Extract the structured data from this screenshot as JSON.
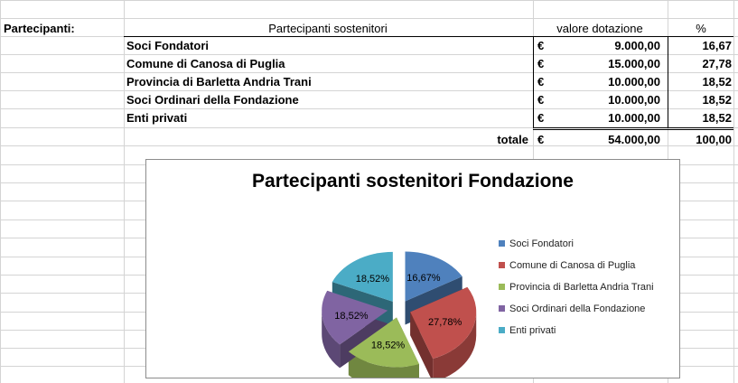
{
  "sheet": {
    "row_label": "Partecipanti:",
    "headers": {
      "name": "Partecipanti sostenitori",
      "value": "valore dotazione",
      "pct": "%"
    },
    "currency": "€",
    "rows": [
      {
        "name": "Soci Fondatori",
        "value": "9.000,00",
        "pct": "16,67"
      },
      {
        "name": "Comune di Canosa di Puglia",
        "value": "15.000,00",
        "pct": "27,78"
      },
      {
        "name": "Provincia di Barletta Andria Trani",
        "value": "10.000,00",
        "pct": "18,52"
      },
      {
        "name": "Soci Ordinari della Fondazione",
        "value": "10.000,00",
        "pct": "18,52"
      },
      {
        "name": "Enti privati",
        "value": "10.000,00",
        "pct": "18,52"
      }
    ],
    "total": {
      "label": "totale",
      "value": "54.000,00",
      "pct": "100,00"
    }
  },
  "chart_data": {
    "type": "pie",
    "title": "Partecipanti sostenitori Fondazione",
    "categories": [
      "Soci Fondatori",
      "Comune di Canosa di Puglia",
      "Provincia di Barletta Andria Trani",
      "Soci Ordinari della Fondazione",
      "Enti privati"
    ],
    "values": [
      9000,
      15000,
      10000,
      10000,
      10000
    ],
    "data_labels": [
      "16,67%",
      "27,78%",
      "18,52%",
      "18,52%",
      "18,52%"
    ],
    "colors": [
      "#4f81bd",
      "#c0504d",
      "#9bbb59",
      "#8064a2",
      "#4bacc6"
    ],
    "exploded": true,
    "style": "3d",
    "legend": "right"
  }
}
